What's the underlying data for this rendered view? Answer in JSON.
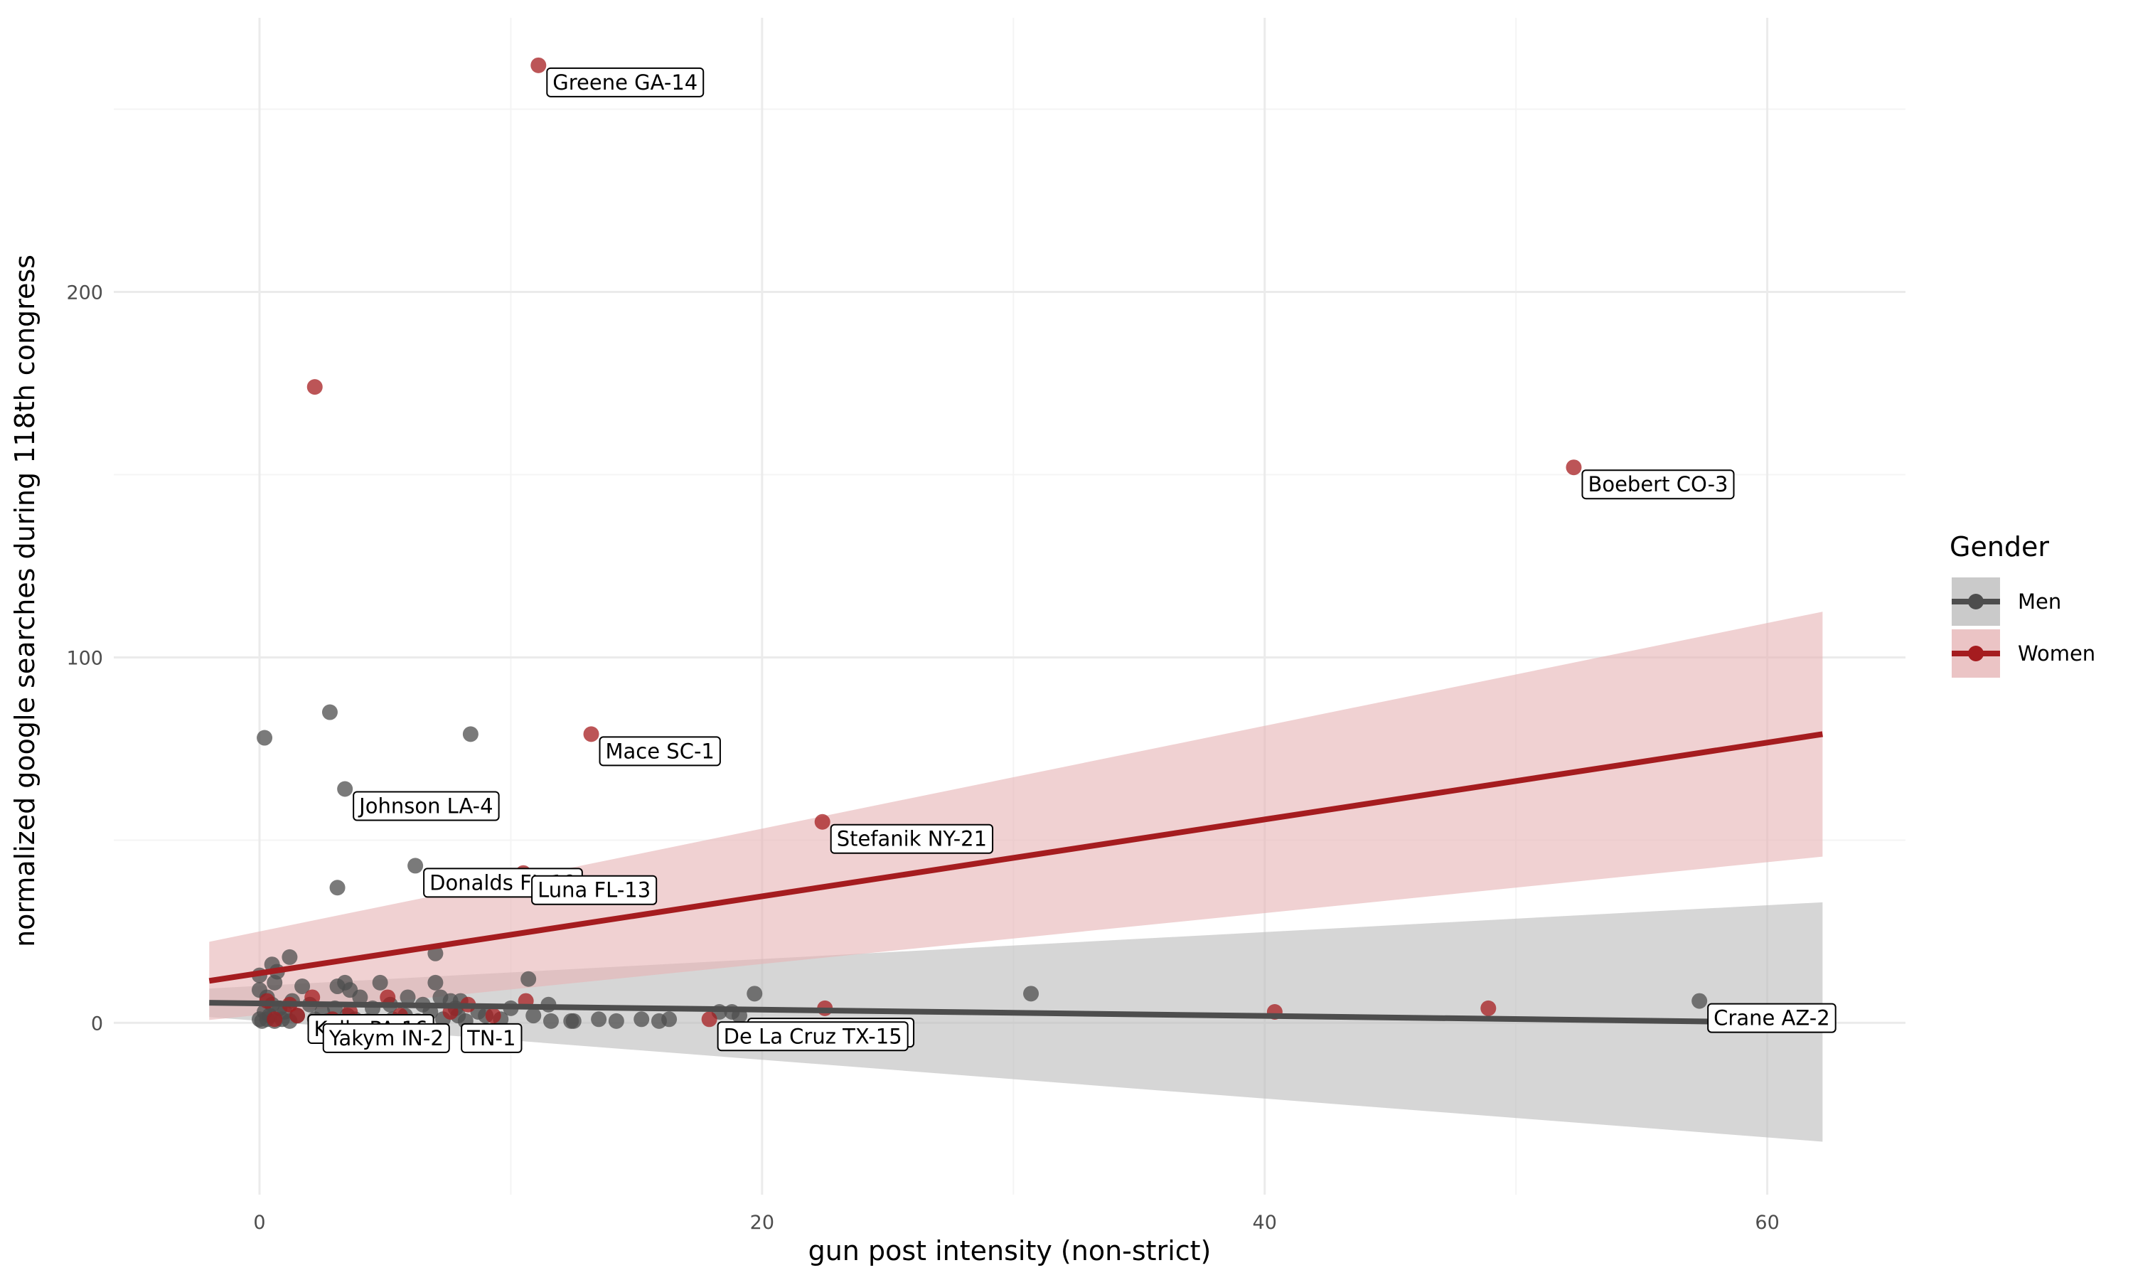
{
  "chart_data": {
    "type": "scatter",
    "title": "",
    "xlabel": "gun post intensity (non-strict)",
    "ylabel": "normalized google searches during 118th congress",
    "xlim": [
      -5.8,
      65.5
    ],
    "ylim": [
      -47,
      275
    ],
    "x_ticks": [
      0,
      20,
      40,
      60
    ],
    "y_ticks": [
      0,
      100,
      200
    ],
    "grid": true,
    "legend": {
      "title": "Gender",
      "placement": "right",
      "entries": [
        "Men",
        "Women"
      ]
    },
    "colors": {
      "Men": "#4d4d4d",
      "Women": "#a51c1f",
      "Men_band": "#bdbdbd",
      "Women_band": "#e6b5b7",
      "grid_major": "#ebebeb",
      "grid_minor": "#f4f4f4"
    },
    "series": [
      {
        "name": "Men",
        "points": [
          [
            0.2,
            78
          ],
          [
            2.8,
            85
          ],
          [
            8.4,
            79
          ],
          [
            3.4,
            64
          ],
          [
            6.2,
            43
          ],
          [
            3.1,
            37
          ],
          [
            7,
            19
          ],
          [
            1.2,
            18
          ],
          [
            0.5,
            16
          ],
          [
            0.7,
            14
          ],
          [
            0,
            13
          ],
          [
            0.6,
            11
          ],
          [
            3.4,
            11
          ],
          [
            4.8,
            11
          ],
          [
            7,
            11
          ],
          [
            10.7,
            12
          ],
          [
            1.7,
            10
          ],
          [
            0,
            9
          ],
          [
            3.1,
            10
          ],
          [
            3.6,
            9
          ],
          [
            19.7,
            8
          ],
          [
            30.7,
            8
          ],
          [
            57.3,
            6
          ],
          [
            0.3,
            7
          ],
          [
            1.3,
            6
          ],
          [
            4,
            7
          ],
          [
            5.9,
            7
          ],
          [
            7.2,
            7
          ],
          [
            7.6,
            6
          ],
          [
            8,
            6
          ],
          [
            11.5,
            5
          ],
          [
            0.5,
            5
          ],
          [
            0.8,
            4
          ],
          [
            2,
            5
          ],
          [
            3,
            4
          ],
          [
            4.5,
            4
          ],
          [
            5.2,
            5
          ],
          [
            6.5,
            5
          ],
          [
            7.8,
            4
          ],
          [
            8.7,
            3
          ],
          [
            10,
            4
          ],
          [
            0.2,
            3
          ],
          [
            0.4,
            2
          ],
          [
            1,
            3
          ],
          [
            1.5,
            2
          ],
          [
            2.5,
            3
          ],
          [
            3.5,
            2
          ],
          [
            5.8,
            2
          ],
          [
            6.8,
            3
          ],
          [
            7.9,
            2
          ],
          [
            9,
            2
          ],
          [
            10.9,
            2
          ],
          [
            18.3,
            3
          ],
          [
            18.8,
            3
          ],
          [
            19.1,
            2
          ],
          [
            0,
            1
          ],
          [
            0.1,
            0.5
          ],
          [
            0.3,
            1
          ],
          [
            0.6,
            0.5
          ],
          [
            0.9,
            1
          ],
          [
            1.2,
            0.5
          ],
          [
            2.2,
            1
          ],
          [
            2.7,
            0.5
          ],
          [
            3.8,
            1
          ],
          [
            4.3,
            0.5
          ],
          [
            5.3,
            1
          ],
          [
            6.3,
            0.5
          ],
          [
            7.3,
            1
          ],
          [
            8.2,
            0.5
          ],
          [
            9.6,
            1
          ],
          [
            11.6,
            0.5
          ],
          [
            12.4,
            0.5
          ],
          [
            12.5,
            0.5
          ],
          [
            13.5,
            1
          ],
          [
            14.2,
            0.5
          ],
          [
            15.2,
            1
          ],
          [
            15.9,
            0.5
          ],
          [
            16.3,
            1
          ]
        ]
      },
      {
        "name": "Women",
        "points": [
          [
            11.1,
            262
          ],
          [
            2.2,
            174
          ],
          [
            52.3,
            152
          ],
          [
            13.2,
            79
          ],
          [
            22.4,
            55
          ],
          [
            10.5,
            41
          ],
          [
            0.3,
            6
          ],
          [
            1.2,
            5
          ],
          [
            2.1,
            7
          ],
          [
            5.1,
            7
          ],
          [
            8.3,
            5
          ],
          [
            10.6,
            6
          ],
          [
            1.5,
            2
          ],
          [
            3.6,
            3
          ],
          [
            5.6,
            2
          ],
          [
            7.6,
            3
          ],
          [
            9.3,
            2
          ],
          [
            17.9,
            1
          ],
          [
            22.5,
            4
          ],
          [
            40.4,
            3
          ],
          [
            48.9,
            4
          ],
          [
            0.6,
            1
          ],
          [
            2.9,
            1
          ]
        ]
      }
    ],
    "fits": [
      {
        "name": "Men",
        "x": [
          -2,
          62.2
        ],
        "y": [
          5.5,
          0
        ],
        "band_low": [
          1.6,
          -32.5
        ],
        "band_high": [
          9.4,
          33
        ]
      },
      {
        "name": "Women",
        "x": [
          -2,
          62.2
        ],
        "y": [
          11.5,
          79
        ],
        "band_low": [
          0.8,
          45.5
        ],
        "band_high": [
          22.2,
          112.5
        ]
      }
    ],
    "annotations": [
      {
        "label": "Greene GA-14",
        "x": 11.1,
        "y": 262
      },
      {
        "label": "Boebert CO-3",
        "x": 52.3,
        "y": 152
      },
      {
        "label": "Mace SC-1",
        "x": 13.2,
        "y": 79
      },
      {
        "label": "Johnson LA-4",
        "x": 3.4,
        "y": 64
      },
      {
        "label": "Stefanik NY-21",
        "x": 22.4,
        "y": 55
      },
      {
        "label": "Donalds FL-19",
        "x": 6.2,
        "y": 43
      },
      {
        "label": "Luna FL-13",
        "x": 10.5,
        "y": 41
      },
      {
        "label": "Crenshaw TX-2",
        "x": 19.1,
        "y": 2
      },
      {
        "label": "Crane AZ-2",
        "x": 57.3,
        "y": 6
      },
      {
        "label": "De La Cruz TX-15",
        "x": 17.9,
        "y": 1
      },
      {
        "label": "Kelly PA-16",
        "x": 1.6,
        "y": 3
      },
      {
        "label": "TN-1",
        "x": 7.7,
        "y": 0.5
      },
      {
        "label": "Yakym IN-2",
        "x": 2.2,
        "y": 0.5
      }
    ]
  }
}
